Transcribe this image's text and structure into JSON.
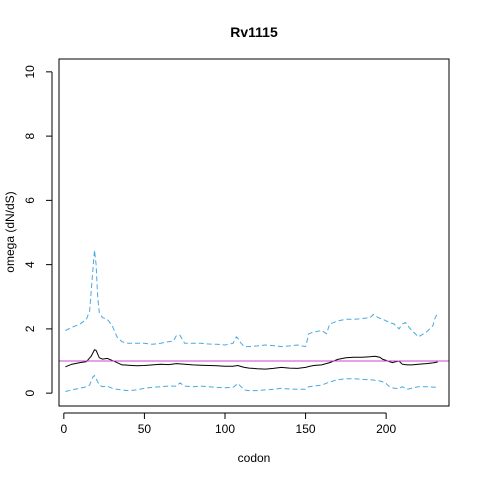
{
  "chart_data": {
    "type": "line",
    "title": "Rv1115",
    "xlabel": "codon",
    "ylabel": "omega (dN/dS)",
    "xlim": [
      -3,
      239
    ],
    "ylim": [
      -0.4,
      10.4
    ],
    "xticks": [
      0,
      50,
      100,
      150,
      200
    ],
    "yticks": [
      0,
      2,
      4,
      6,
      8,
      10
    ],
    "reference_line": {
      "y": 1,
      "color": "#cc44cc"
    },
    "series": [
      {
        "color": "#000000",
        "dash": "solid",
        "x": [
          1,
          5,
          10,
          14,
          17,
          19,
          20,
          22,
          24,
          27,
          30,
          33,
          36,
          40,
          45,
          50,
          55,
          60,
          65,
          70,
          75,
          80,
          85,
          90,
          95,
          100,
          105,
          108,
          110,
          112,
          115,
          120,
          125,
          130,
          135,
          140,
          145,
          150,
          152,
          155,
          160,
          165,
          170,
          175,
          180,
          185,
          190,
          193,
          196,
          198,
          200,
          202,
          204,
          206,
          208,
          210,
          213,
          216,
          220,
          225,
          229,
          232
        ],
        "y": [
          0.82,
          0.9,
          0.95,
          0.98,
          1.15,
          1.35,
          1.33,
          1.1,
          1.06,
          1.08,
          1.02,
          0.95,
          0.88,
          0.87,
          0.85,
          0.86,
          0.88,
          0.9,
          0.89,
          0.92,
          0.9,
          0.88,
          0.87,
          0.86,
          0.85,
          0.84,
          0.84,
          0.86,
          0.83,
          0.8,
          0.78,
          0.76,
          0.75,
          0.77,
          0.8,
          0.78,
          0.77,
          0.8,
          0.83,
          0.86,
          0.88,
          0.95,
          1.05,
          1.1,
          1.12,
          1.12,
          1.13,
          1.15,
          1.12,
          1.05,
          1.02,
          0.98,
          0.95,
          0.98,
          1.0,
          0.9,
          0.88,
          0.88,
          0.9,
          0.92,
          0.94,
          0.97
        ]
      },
      {
        "color": "#4aa8e0",
        "dash": "dashed",
        "x": [
          1,
          5,
          10,
          14,
          16,
          18,
          19,
          20,
          21,
          22,
          24,
          27,
          30,
          33,
          36,
          40,
          45,
          50,
          55,
          60,
          65,
          68,
          70,
          72,
          75,
          80,
          85,
          90,
          95,
          100,
          105,
          107,
          108,
          110,
          112,
          115,
          120,
          125,
          130,
          135,
          140,
          145,
          150,
          152,
          155,
          160,
          163,
          165,
          170,
          175,
          180,
          185,
          190,
          192,
          195,
          198,
          200,
          205,
          208,
          210,
          212,
          215,
          220,
          225,
          229,
          230,
          232
        ],
        "y": [
          1.95,
          2.05,
          2.15,
          2.3,
          2.55,
          3.8,
          4.45,
          4.0,
          3.0,
          2.5,
          2.35,
          2.3,
          2.1,
          1.75,
          1.6,
          1.55,
          1.55,
          1.55,
          1.52,
          1.55,
          1.6,
          1.62,
          1.8,
          1.8,
          1.55,
          1.55,
          1.55,
          1.53,
          1.52,
          1.5,
          1.55,
          1.75,
          1.7,
          1.55,
          1.45,
          1.45,
          1.47,
          1.5,
          1.48,
          1.45,
          1.47,
          1.5,
          1.45,
          1.85,
          1.9,
          1.95,
          1.85,
          2.15,
          2.25,
          2.3,
          2.3,
          2.32,
          2.35,
          2.45,
          2.35,
          2.3,
          2.25,
          2.15,
          2.0,
          2.15,
          2.2,
          2.0,
          1.75,
          1.9,
          2.1,
          2.3,
          2.5
        ]
      },
      {
        "color": "#4aa8e0",
        "dash": "dashed",
        "x": [
          1,
          5,
          10,
          14,
          16,
          18,
          19,
          20,
          22,
          24,
          27,
          30,
          33,
          36,
          40,
          45,
          50,
          55,
          60,
          65,
          70,
          72,
          75,
          80,
          85,
          90,
          95,
          100,
          105,
          108,
          110,
          112,
          115,
          120,
          125,
          130,
          135,
          140,
          145,
          150,
          152,
          155,
          160,
          165,
          170,
          175,
          180,
          185,
          190,
          193,
          196,
          198,
          200,
          202,
          205,
          208,
          210,
          213,
          216,
          220,
          225,
          232
        ],
        "y": [
          0.05,
          0.1,
          0.15,
          0.2,
          0.25,
          0.5,
          0.55,
          0.45,
          0.25,
          0.2,
          0.22,
          0.15,
          0.12,
          0.1,
          0.08,
          0.1,
          0.15,
          0.18,
          0.2,
          0.22,
          0.22,
          0.32,
          0.22,
          0.2,
          0.22,
          0.2,
          0.18,
          0.17,
          0.18,
          0.3,
          0.2,
          0.1,
          0.08,
          0.08,
          0.1,
          0.12,
          0.15,
          0.13,
          0.12,
          0.12,
          0.2,
          0.22,
          0.25,
          0.35,
          0.42,
          0.45,
          0.45,
          0.43,
          0.42,
          0.4,
          0.38,
          0.35,
          0.3,
          0.2,
          0.15,
          0.14,
          0.2,
          0.12,
          0.15,
          0.2,
          0.2,
          0.18
        ]
      }
    ]
  }
}
